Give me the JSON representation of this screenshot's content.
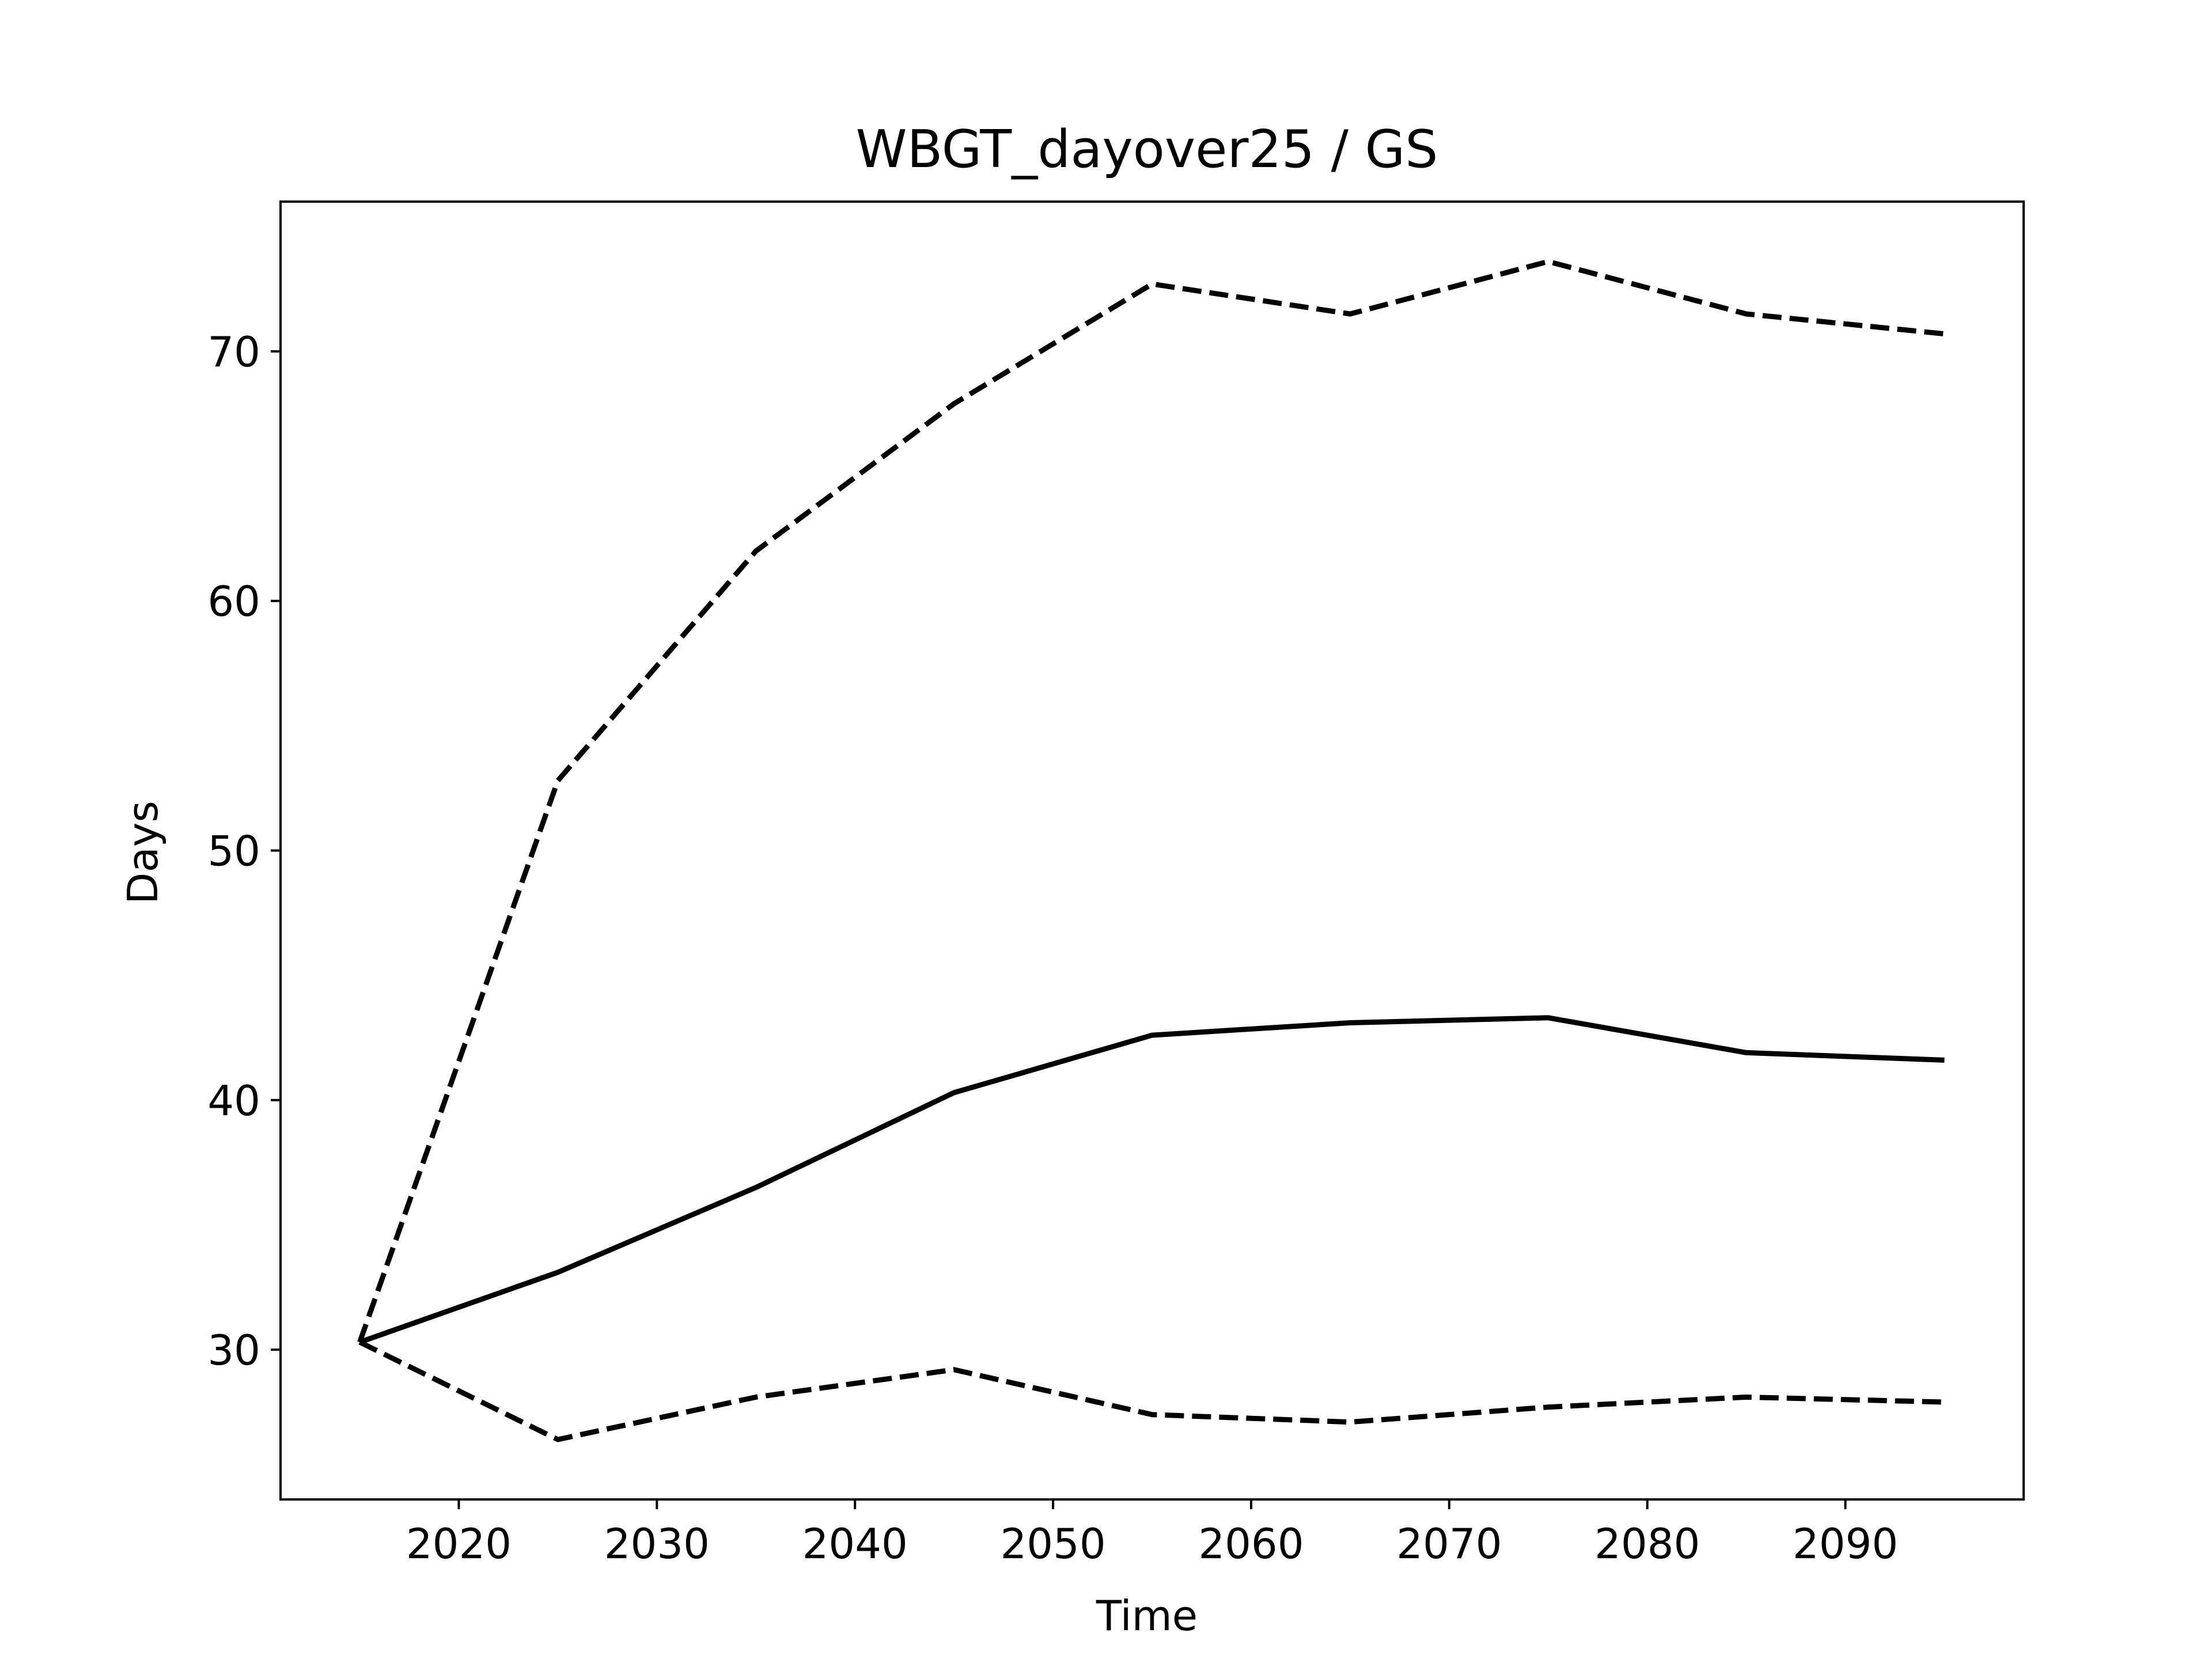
{
  "chart_data": {
    "type": "line",
    "title": "WBGT_dayover25 / GS",
    "xlabel": "Time",
    "ylabel": "Days",
    "x": [
      2015,
      2025,
      2035,
      2045,
      2055,
      2065,
      2075,
      2085,
      2095
    ],
    "xlim": [
      2011,
      2099
    ],
    "ylim": [
      24,
      76
    ],
    "xticks": [
      2020,
      2030,
      2040,
      2050,
      2060,
      2070,
      2080,
      2090
    ],
    "yticks": [
      30,
      40,
      50,
      60,
      70
    ],
    "grid": false,
    "line_color": "#000000",
    "series": [
      {
        "style": "dashed",
        "values": [
          30.3,
          52.8,
          62.0,
          67.9,
          72.7,
          71.5,
          73.6,
          71.5,
          70.7
        ]
      },
      {
        "style": "solid",
        "values": [
          30.3,
          33.1,
          36.5,
          40.3,
          42.6,
          43.1,
          43.3,
          41.9,
          41.6
        ]
      },
      {
        "style": "dashed",
        "values": [
          30.3,
          26.4,
          28.1,
          29.2,
          27.4,
          27.1,
          27.7,
          28.1,
          27.9
        ]
      }
    ]
  }
}
